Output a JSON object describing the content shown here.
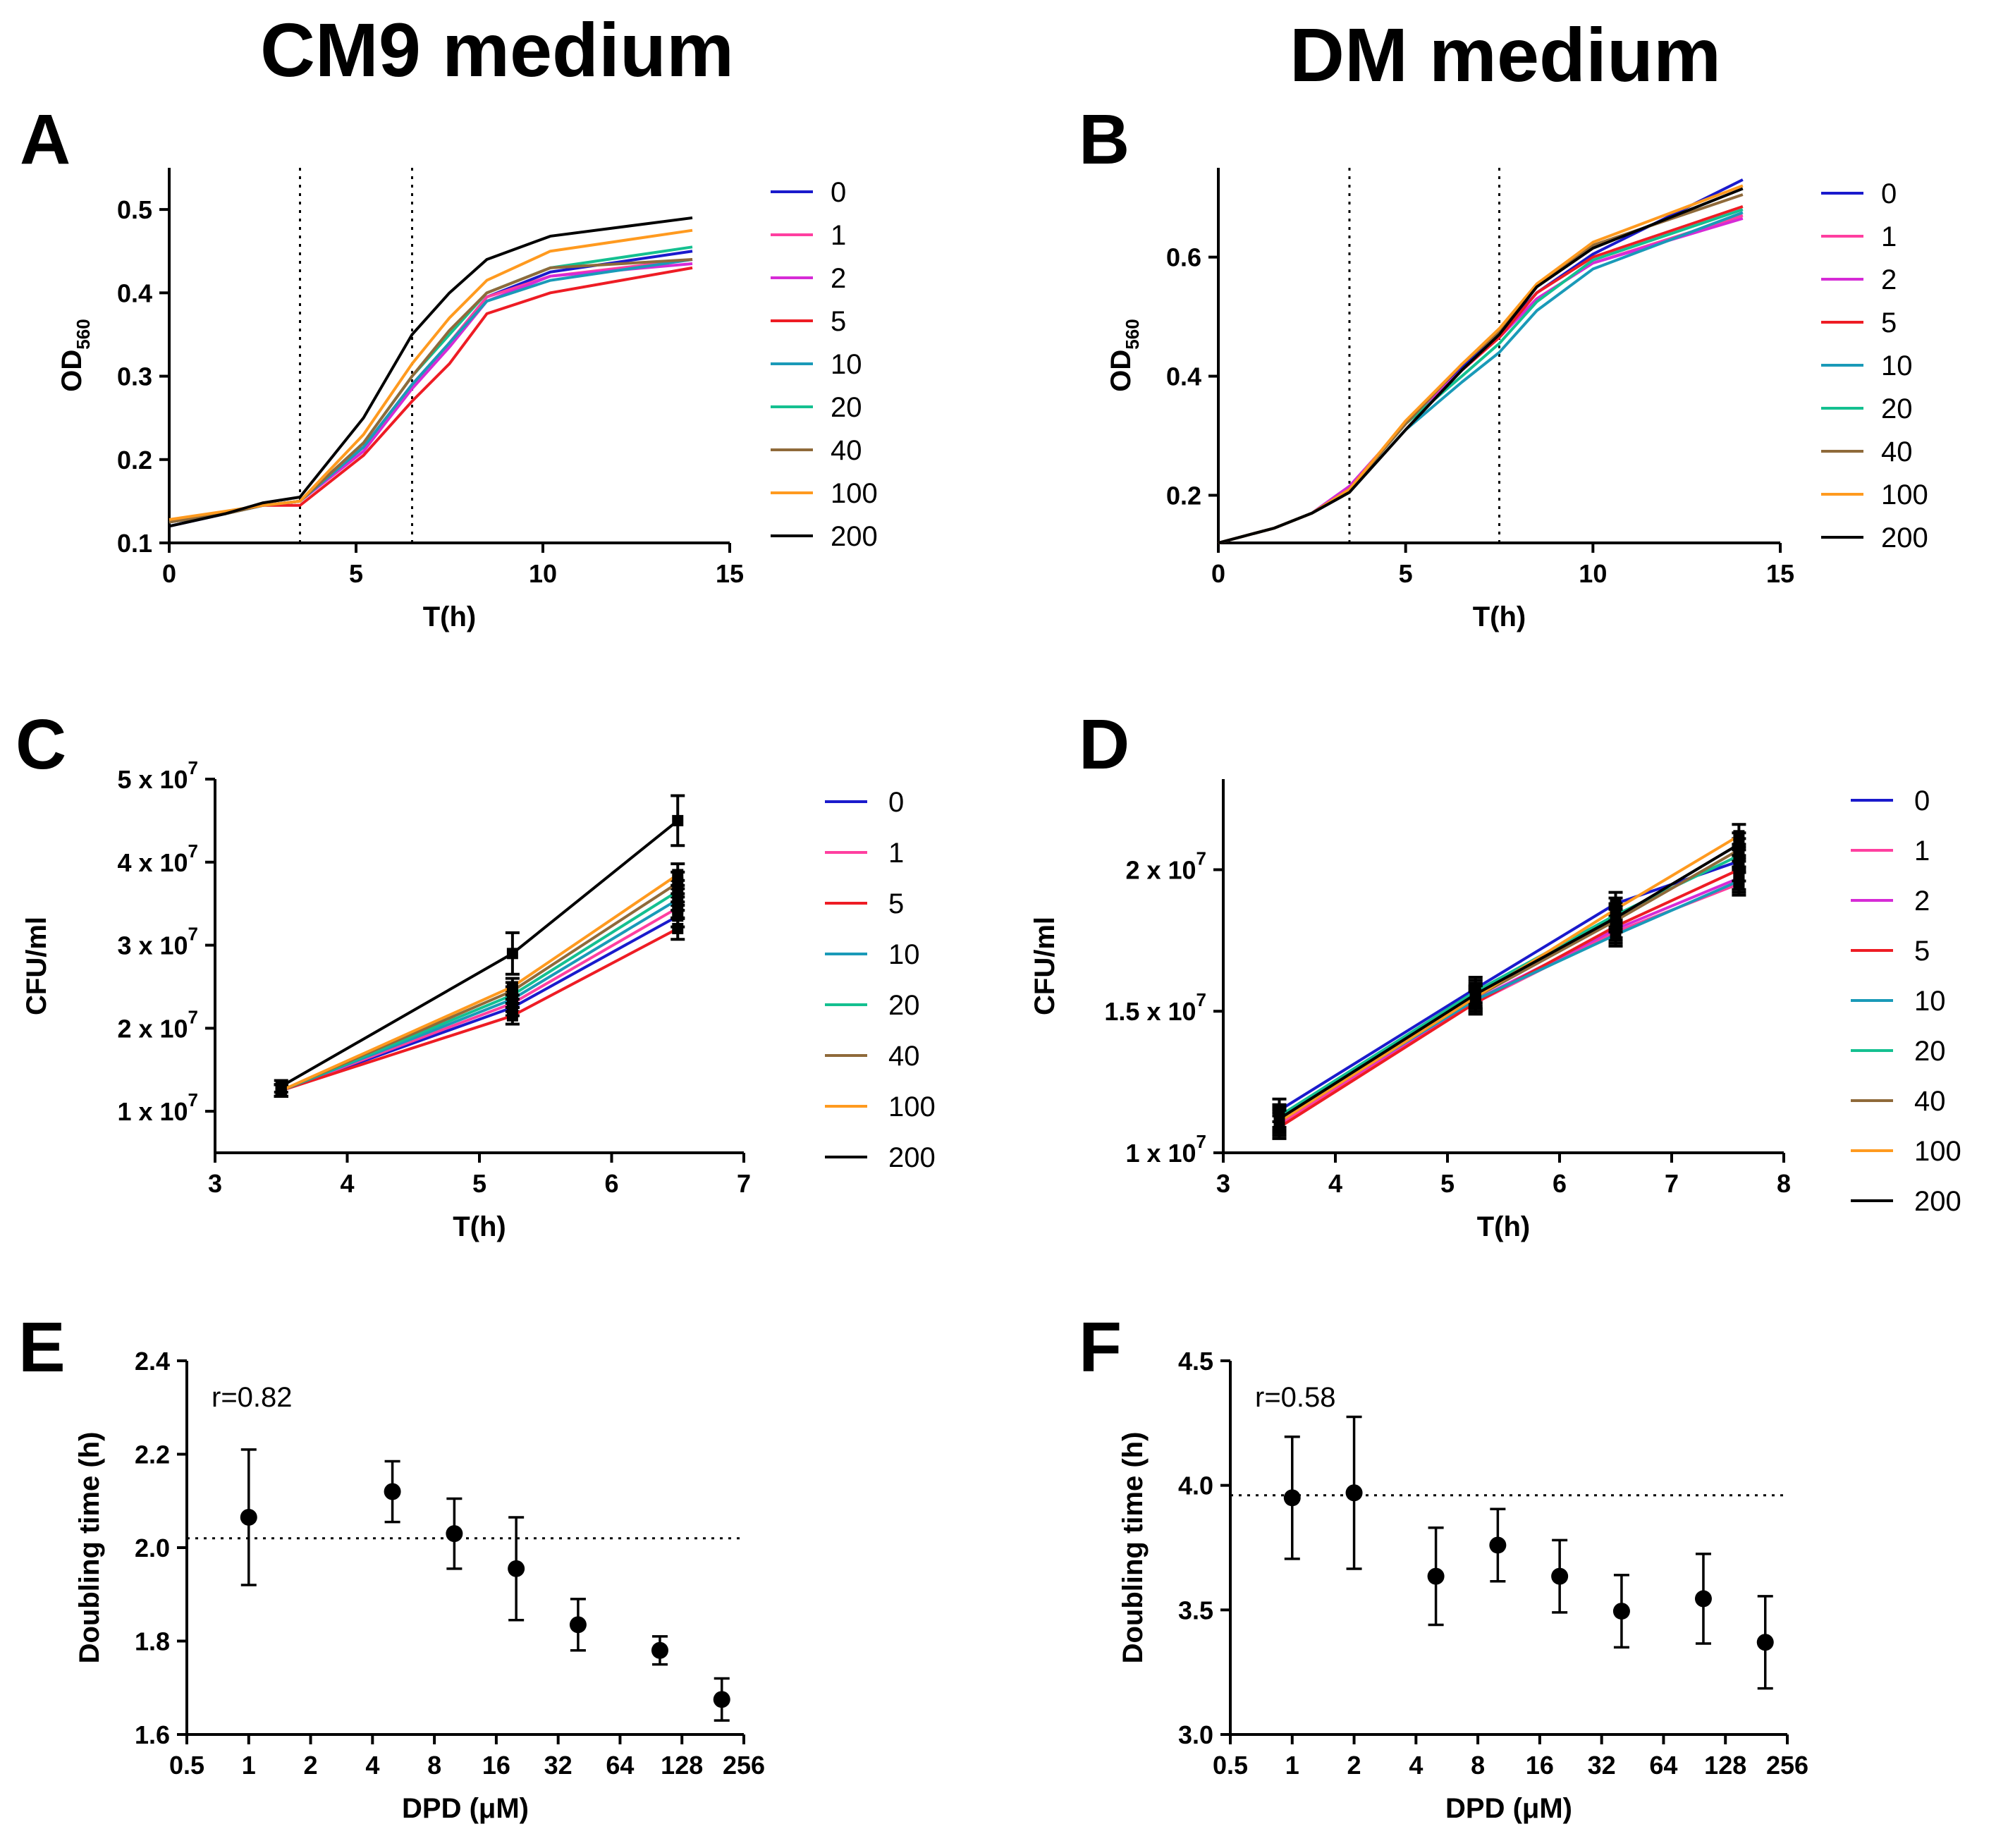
{
  "figure": {
    "col_titles": [
      "CM9 medium",
      "DM medium"
    ]
  },
  "chart_data": [
    {
      "panel": "A",
      "type": "line",
      "xlabel": "T(h)",
      "ylabel": "OD560",
      "ylabel_main": "OD",
      "ylabel_sub": "560",
      "xlim": [
        0,
        15
      ],
      "ylim": [
        0.1,
        0.55
      ],
      "xticks": [
        0,
        5,
        10,
        15
      ],
      "yticks": [
        0.1,
        0.2,
        0.3,
        0.4,
        0.5
      ],
      "ytick_labels": [
        "0.1",
        "0.2",
        "0.3",
        "0.4",
        "0.5"
      ],
      "vlines": [
        3.5,
        6.5
      ],
      "x": [
        0,
        1.5,
        2.5,
        3.5,
        5.2,
        6.5,
        7.5,
        8.5,
        10.2,
        14
      ],
      "series": [
        {
          "name": "0",
          "values": [
            0.12,
            0.135,
            0.145,
            0.15,
            0.215,
            0.29,
            0.34,
            0.395,
            0.425,
            0.45
          ]
        },
        {
          "name": "1",
          "values": [
            0.125,
            0.135,
            0.145,
            0.15,
            0.215,
            0.29,
            0.34,
            0.395,
            0.42,
            0.44
          ]
        },
        {
          "name": "2",
          "values": [
            0.125,
            0.135,
            0.145,
            0.15,
            0.21,
            0.285,
            0.335,
            0.39,
            0.42,
            0.435
          ]
        },
        {
          "name": "5",
          "values": [
            0.125,
            0.135,
            0.145,
            0.145,
            0.205,
            0.27,
            0.315,
            0.375,
            0.4,
            0.43
          ]
        },
        {
          "name": "10",
          "values": [
            0.125,
            0.135,
            0.145,
            0.15,
            0.215,
            0.29,
            0.34,
            0.39,
            0.415,
            0.44
          ]
        },
        {
          "name": "20",
          "values": [
            0.125,
            0.135,
            0.145,
            0.15,
            0.22,
            0.3,
            0.35,
            0.4,
            0.43,
            0.455
          ]
        },
        {
          "name": "40",
          "values": [
            0.125,
            0.135,
            0.145,
            0.15,
            0.22,
            0.3,
            0.355,
            0.4,
            0.43,
            0.44
          ]
        },
        {
          "name": "100",
          "values": [
            0.128,
            0.138,
            0.145,
            0.15,
            0.23,
            0.315,
            0.37,
            0.415,
            0.45,
            0.475
          ]
        },
        {
          "name": "200",
          "values": [
            0.12,
            0.135,
            0.148,
            0.155,
            0.25,
            0.35,
            0.4,
            0.44,
            0.468,
            0.49
          ]
        }
      ],
      "legend": [
        "0",
        "1",
        "2",
        "5",
        "10",
        "20",
        "40",
        "100",
        "200"
      ]
    },
    {
      "panel": "B",
      "type": "line",
      "xlabel": "T(h)",
      "ylabel": "OD560",
      "ylabel_main": "OD",
      "ylabel_sub": "560",
      "xlim": [
        0,
        15
      ],
      "ylim": [
        0.12,
        0.75
      ],
      "xticks": [
        0,
        5,
        10,
        15
      ],
      "yticks": [
        0.2,
        0.4,
        0.6
      ],
      "ytick_labels": [
        "0.2",
        "0.4",
        "0.6"
      ],
      "vlines": [
        3.5,
        7.5
      ],
      "x": [
        0,
        1.5,
        2.5,
        3.5,
        5,
        6.5,
        7.5,
        8.5,
        10,
        14
      ],
      "series": [
        {
          "name": "0",
          "values": [
            0.12,
            0.145,
            0.17,
            0.215,
            0.32,
            0.415,
            0.47,
            0.54,
            0.605,
            0.73
          ]
        },
        {
          "name": "1",
          "values": [
            0.12,
            0.145,
            0.17,
            0.215,
            0.32,
            0.41,
            0.465,
            0.53,
            0.59,
            0.67
          ]
        },
        {
          "name": "2",
          "values": [
            0.12,
            0.145,
            0.17,
            0.215,
            0.32,
            0.41,
            0.465,
            0.53,
            0.59,
            0.665
          ]
        },
        {
          "name": "5",
          "values": [
            0.12,
            0.145,
            0.17,
            0.205,
            0.31,
            0.41,
            0.465,
            0.54,
            0.6,
            0.685
          ]
        },
        {
          "name": "10",
          "values": [
            0.12,
            0.145,
            0.17,
            0.205,
            0.31,
            0.39,
            0.44,
            0.51,
            0.58,
            0.675
          ]
        },
        {
          "name": "20",
          "values": [
            0.12,
            0.145,
            0.17,
            0.21,
            0.32,
            0.4,
            0.455,
            0.525,
            0.595,
            0.68
          ]
        },
        {
          "name": "40",
          "values": [
            0.12,
            0.145,
            0.17,
            0.21,
            0.32,
            0.42,
            0.475,
            0.55,
            0.62,
            0.705
          ]
        },
        {
          "name": "100",
          "values": [
            0.12,
            0.145,
            0.17,
            0.21,
            0.325,
            0.42,
            0.48,
            0.555,
            0.625,
            0.72
          ]
        },
        {
          "name": "200",
          "values": [
            0.12,
            0.145,
            0.17,
            0.205,
            0.31,
            0.41,
            0.47,
            0.55,
            0.615,
            0.715
          ]
        }
      ],
      "legend": [
        "0",
        "1",
        "2",
        "5",
        "10",
        "20",
        "40",
        "100",
        "200"
      ]
    },
    {
      "panel": "C",
      "type": "line",
      "xlabel": "T(h)",
      "ylabel": "CFU/ml",
      "xlim": [
        3,
        7
      ],
      "ylim": [
        5000000,
        50000000
      ],
      "xticks": [
        3,
        4,
        5,
        6,
        7
      ],
      "yticks": [
        10000000,
        20000000,
        30000000,
        40000000,
        50000000
      ],
      "ytick_labels": [
        "1 x 10",
        "2 x 10",
        "3 x 10",
        "4 x 10",
        "5 x 10"
      ],
      "ytick_exp": "7",
      "x": [
        3.5,
        5.25,
        6.5
      ],
      "series": [
        {
          "name": "0",
          "values": [
            12500000,
            22500000,
            33500000
          ],
          "errors": [
            700000,
            1000000,
            1300000
          ]
        },
        {
          "name": "1",
          "values": [
            12500000,
            23000000,
            34500000
          ],
          "errors": [
            700000,
            1000000,
            1300000
          ]
        },
        {
          "name": "5",
          "values": [
            12500000,
            21500000,
            32000000
          ],
          "errors": [
            700000,
            1000000,
            1300000
          ]
        },
        {
          "name": "10",
          "values": [
            12500000,
            23500000,
            35500000
          ],
          "errors": [
            700000,
            1000000,
            1300000
          ]
        },
        {
          "name": "20",
          "values": [
            12500000,
            24000000,
            36500000
          ],
          "errors": [
            700000,
            1000000,
            1300000
          ]
        },
        {
          "name": "40",
          "values": [
            12500000,
            24500000,
            37500000
          ],
          "errors": [
            700000,
            1000000,
            1300000
          ]
        },
        {
          "name": "100",
          "values": [
            12500000,
            25000000,
            38500000
          ],
          "errors": [
            700000,
            1000000,
            1300000
          ]
        },
        {
          "name": "200",
          "values": [
            13000000,
            29000000,
            45000000
          ],
          "errors": [
            700000,
            2500000,
            3000000
          ]
        }
      ],
      "legend": [
        "0",
        "1",
        "5",
        "10",
        "20",
        "40",
        "100",
        "200"
      ]
    },
    {
      "panel": "D",
      "type": "line",
      "xlabel": "T(h)",
      "ylabel": "CFU/ml",
      "xlim": [
        3,
        8
      ],
      "ylim": [
        10000000,
        23200000
      ],
      "xticks": [
        3,
        4,
        5,
        6,
        7,
        8
      ],
      "yticks": [
        10000000,
        15000000,
        20000000
      ],
      "ytick_labels": [
        "1 x 10",
        "1.5 x 10",
        "2 x 10"
      ],
      "ytick_exp": "7",
      "x": [
        3.5,
        5.25,
        6.5,
        7.6
      ],
      "series": [
        {
          "name": "0",
          "values": [
            11500000,
            15800000,
            18800000,
            20300000
          ],
          "errors": [
            400000,
            400000,
            400000,
            400000
          ]
        },
        {
          "name": "1",
          "values": [
            11000000,
            15300000,
            17800000,
            19500000
          ],
          "errors": [
            400000,
            400000,
            400000,
            400000
          ]
        },
        {
          "name": "2",
          "values": [
            11100000,
            15400000,
            17900000,
            19700000
          ],
          "errors": [
            400000,
            400000,
            400000,
            400000
          ]
        },
        {
          "name": "5",
          "values": [
            10900000,
            15300000,
            18000000,
            20000000
          ],
          "errors": [
            400000,
            400000,
            400000,
            400000
          ]
        },
        {
          "name": "10",
          "values": [
            11200000,
            15400000,
            17700000,
            19600000
          ],
          "errors": [
            400000,
            400000,
            400000,
            400000
          ]
        },
        {
          "name": "20",
          "values": [
            11300000,
            15700000,
            18400000,
            20500000
          ],
          "errors": [
            400000,
            400000,
            400000,
            400000
          ]
        },
        {
          "name": "40",
          "values": [
            11200000,
            15500000,
            18200000,
            20700000
          ],
          "errors": [
            400000,
            400000,
            400000,
            400000
          ]
        },
        {
          "name": "100",
          "values": [
            11100000,
            15500000,
            18600000,
            21200000
          ],
          "errors": [
            400000,
            400000,
            400000,
            400000
          ]
        },
        {
          "name": "200",
          "values": [
            11200000,
            15600000,
            18300000,
            20900000
          ],
          "errors": [
            400000,
            400000,
            400000,
            400000
          ]
        }
      ],
      "legend": [
        "0",
        "1",
        "2",
        "5",
        "10",
        "20",
        "40",
        "100",
        "200"
      ]
    },
    {
      "panel": "E",
      "type": "scatter",
      "xlabel": "DPD (μM)",
      "ylabel": "Doubling time (h)",
      "xscale": "log2",
      "xlim": [
        0.5,
        256
      ],
      "ylim": [
        1.6,
        2.4
      ],
      "xticks": [
        0.5,
        1,
        2,
        4,
        8,
        16,
        32,
        64,
        128,
        256
      ],
      "xtick_labels": [
        "0.5",
        "1",
        "2",
        "4",
        "8",
        "16",
        "32",
        "64",
        "128",
        "256"
      ],
      "yticks": [
        1.6,
        1.8,
        2.0,
        2.2,
        2.4
      ],
      "ytick_labels": [
        "1.6",
        "1.8",
        "2.0",
        "2.2",
        "2.4"
      ],
      "hline": 2.02,
      "annotation": "r=0.82",
      "x": [
        1,
        5,
        10,
        20,
        40,
        100,
        200
      ],
      "values": [
        2.065,
        2.12,
        2.03,
        1.955,
        1.835,
        1.78,
        1.675
      ],
      "errors": [
        0.145,
        0.065,
        0.075,
        0.11,
        0.055,
        0.03,
        0.045
      ]
    },
    {
      "panel": "F",
      "type": "scatter",
      "xlabel": "DPD (μM)",
      "ylabel": "Doubling time (h)",
      "xscale": "log2",
      "xlim": [
        0.5,
        256
      ],
      "ylim": [
        3.0,
        4.5
      ],
      "xticks": [
        0.5,
        1,
        2,
        4,
        8,
        16,
        32,
        64,
        128,
        256
      ],
      "xtick_labels": [
        "0.5",
        "1",
        "2",
        "4",
        "8",
        "16",
        "32",
        "64",
        "128",
        "256"
      ],
      "yticks": [
        3.0,
        3.5,
        4.0,
        4.5
      ],
      "ytick_labels": [
        "3.0",
        "3.5",
        "4.0",
        "4.5"
      ],
      "hline": 3.96,
      "annotation": "r=0.58",
      "x": [
        1,
        2,
        5,
        10,
        20,
        40,
        100,
        200
      ],
      "values": [
        3.95,
        3.97,
        3.635,
        3.76,
        3.635,
        3.495,
        3.545,
        3.37
      ],
      "errors": [
        0.245,
        0.305,
        0.195,
        0.145,
        0.145,
        0.145,
        0.18,
        0.185
      ]
    }
  ],
  "colors": {
    "0": "#1a1acc",
    "1": "#ff3fa0",
    "2": "#d62bd6",
    "5": "#ee1c24",
    "10": "#1a9ab8",
    "20": "#14c090",
    "40": "#8f6a3a",
    "100": "#ff9a1f",
    "200": "#000000"
  }
}
